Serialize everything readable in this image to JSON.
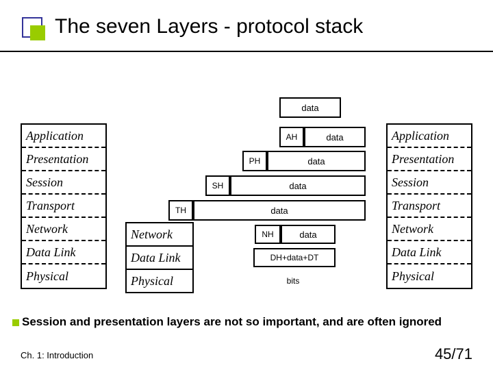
{
  "title": "The seven Layers - protocol stack",
  "layers": [
    "Application",
    "Presentation",
    "Session",
    "Transport",
    "Network",
    "Data Link",
    "Physical"
  ],
  "mid_layers": [
    "Network",
    "Data Link",
    "Physical"
  ],
  "headers": {
    "ah": "AH",
    "ph": "PH",
    "sh": "SH",
    "th": "TH",
    "nh": "NH"
  },
  "data_labels": {
    "top": "data",
    "ah": "data",
    "ph": "data",
    "sh": "data",
    "th": "data",
    "nh": "data",
    "dl": "DH+data+DT",
    "bits": "bits"
  },
  "note": "Session and presentation layers are not so important, and are often ignored",
  "footer": {
    "left": "Ch. 1: Introduction",
    "right": "45/71"
  },
  "colors": {
    "accent": "#99cc00",
    "border_sq": "#333399",
    "text": "#000000",
    "bg": "#ffffff"
  }
}
